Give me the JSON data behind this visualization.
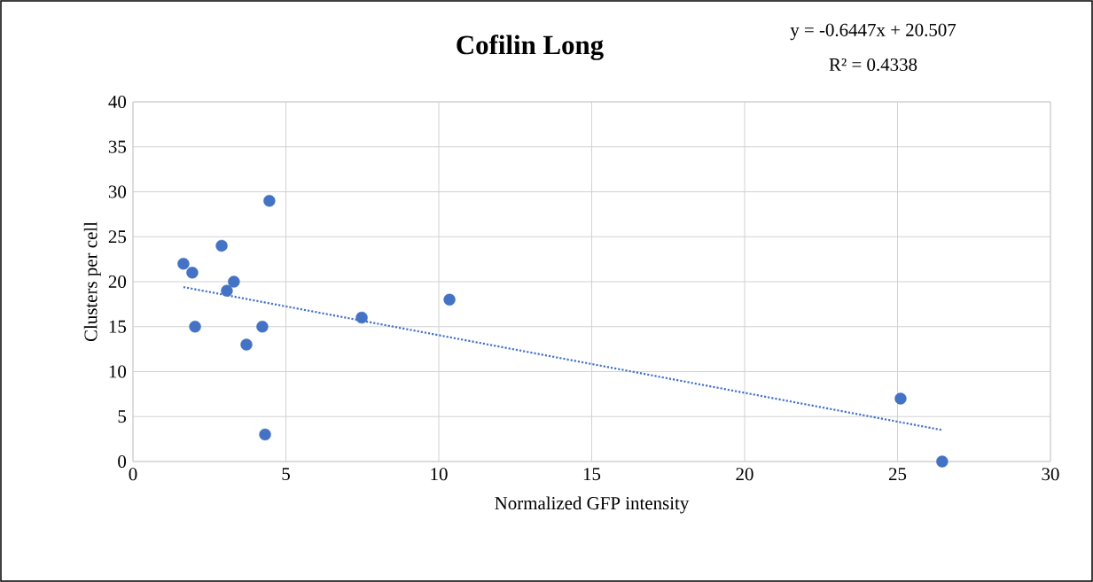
{
  "chart_data": {
    "type": "scatter",
    "title": "Cofilin Long",
    "xlabel": "Normalized GFP intensity",
    "ylabel": "Clusters per cell",
    "annotations": [
      "y = -0.6447x + 20.507",
      "R² = 0.4338"
    ],
    "xlim": [
      0,
      30
    ],
    "xticks": [
      0,
      5,
      10,
      15,
      20,
      25,
      30
    ],
    "ylim": [
      0,
      40
    ],
    "yticks": [
      0,
      5,
      10,
      15,
      20,
      25,
      30,
      35,
      40
    ],
    "grid": true,
    "series": [
      {
        "color": "#4472c4",
        "marker": "circle",
        "x": [
          1.65,
          1.94,
          2.03,
          2.9,
          3.07,
          3.3,
          3.71,
          4.23,
          4.32,
          4.46,
          7.48,
          10.35,
          25.1,
          26.46
        ],
        "values": [
          22,
          21,
          15,
          24,
          19,
          20,
          13,
          15,
          3,
          29,
          16,
          18,
          7,
          0
        ]
      },
      {
        "type": "line",
        "color": "#4472c4",
        "marker": "none",
        "line_style": "dotted",
        "x": [
          1.65,
          26.46
        ],
        "values": [
          19.4,
          3.5
        ]
      }
    ]
  }
}
